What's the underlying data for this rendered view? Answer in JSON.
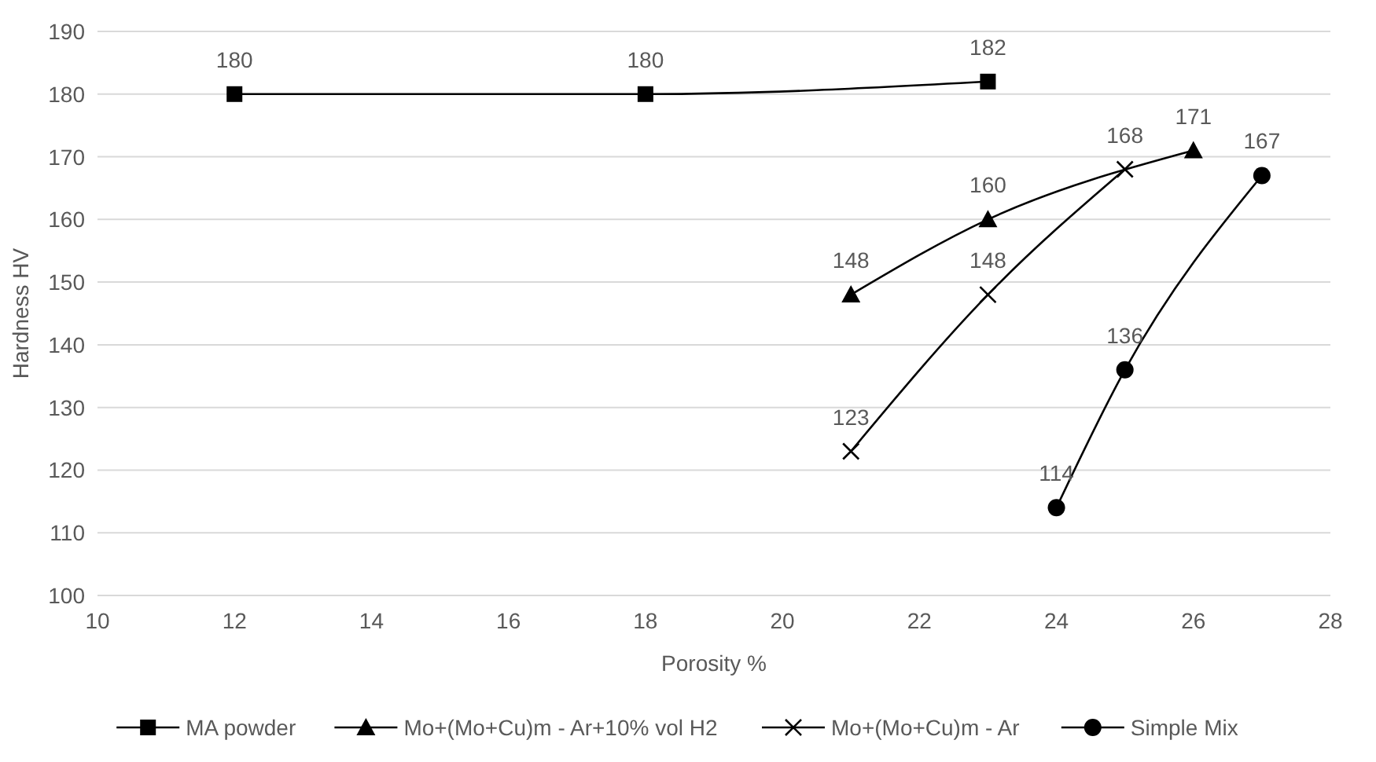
{
  "chart_data": {
    "type": "line",
    "xlabel": "Porosity %",
    "ylabel": "Hardness  HV",
    "xlim": [
      10,
      28
    ],
    "xticks": [
      10,
      12,
      14,
      16,
      18,
      20,
      22,
      24,
      26,
      28
    ],
    "ylim": [
      100,
      190
    ],
    "yticks": [
      100,
      110,
      120,
      130,
      140,
      150,
      160,
      170,
      180,
      190
    ],
    "grid": "y",
    "legend": "bottom",
    "data_labels": true,
    "line_style": "solid",
    "series": [
      {
        "name": "MA powder",
        "color": "#000000",
        "marker": "square",
        "x": [
          12,
          18,
          23
        ],
        "values": [
          180,
          180,
          182
        ]
      },
      {
        "name": "Mo+(Mo+Cu)m - Ar+10% vol H2",
        "color": "#000000",
        "marker": "triangle",
        "x": [
          21,
          23,
          26
        ],
        "values": [
          148,
          160,
          171
        ]
      },
      {
        "name": "Mo+(Mo+Cu)m - Ar",
        "color": "#000000",
        "marker": "cross",
        "x": [
          21,
          23,
          25
        ],
        "values": [
          123,
          148,
          168
        ]
      },
      {
        "name": "Simple Mix",
        "color": "#000000",
        "marker": "circle",
        "x": [
          24,
          25,
          27
        ],
        "values": [
          114,
          136,
          167
        ]
      }
    ]
  }
}
